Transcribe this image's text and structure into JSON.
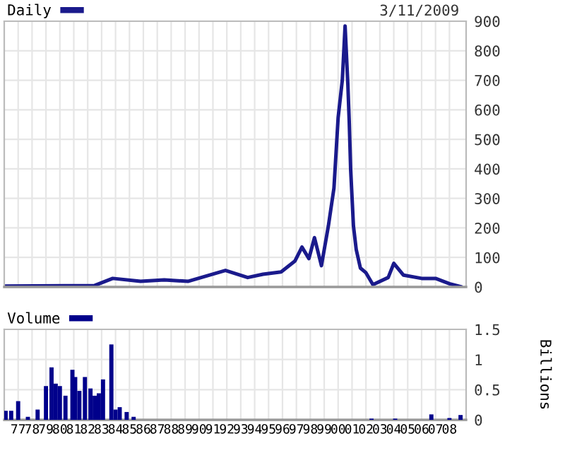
{
  "chart_data": [
    {
      "type": "line",
      "annotations": [
        "3/11/2009"
      ],
      "legend": "top left",
      "grid": true,
      "tick_labels": "y",
      "xlim": [
        1976,
        2009.2
      ],
      "xticks": [
        {
          "value": 1977,
          "label": null
        },
        {
          "value": 1978,
          "label": null
        },
        {
          "value": 1979,
          "label": null
        },
        {
          "value": 1980,
          "label": null
        },
        {
          "value": 1981,
          "label": null
        },
        {
          "value": 1982,
          "label": null
        },
        {
          "value": 1983,
          "label": null
        },
        {
          "value": 1984,
          "label": null
        },
        {
          "value": 1985,
          "label": null
        },
        {
          "value": 1986,
          "label": null
        },
        {
          "value": 1987,
          "label": null
        },
        {
          "value": 1988,
          "label": null
        },
        {
          "value": 1989,
          "label": null
        },
        {
          "value": 1990,
          "label": null
        },
        {
          "value": 1991,
          "label": null
        },
        {
          "value": 1992,
          "label": null
        },
        {
          "value": 1993,
          "label": null
        },
        {
          "value": 1994,
          "label": null
        },
        {
          "value": 1995,
          "label": null
        },
        {
          "value": 1996,
          "label": null
        },
        {
          "value": 1997,
          "label": null
        },
        {
          "value": 1998,
          "label": null
        },
        {
          "value": 1999,
          "label": null
        },
        {
          "value": 2000,
          "label": null
        },
        {
          "value": 2001,
          "label": null
        },
        {
          "value": 2002,
          "label": null
        },
        {
          "value": 2003,
          "label": null
        },
        {
          "value": 2004,
          "label": null
        },
        {
          "value": 2005,
          "label": null
        },
        {
          "value": 2006,
          "label": null
        },
        {
          "value": 2007,
          "label": null
        },
        {
          "value": 2008,
          "label": null
        }
      ],
      "ylim": [
        0,
        900
      ],
      "yticks": [
        0,
        100,
        200,
        300,
        400,
        500,
        600,
        700,
        800,
        900
      ],
      "series": [
        {
          "name": "Daily",
          "color": "#1a1a8c",
          "x": [
            1976.1,
            1982.5,
            1983.8,
            1985.8,
            1987.5,
            1989.2,
            1991.9,
            1993.5,
            1994.6,
            1995.9,
            1996.9,
            1997.4,
            1997.9,
            1998.3,
            1998.8,
            1999.3,
            1999.7,
            2000.0,
            2000.3,
            2000.5,
            2000.7,
            2000.8,
            2000.9,
            2001.0,
            2001.1,
            2001.3,
            2001.6,
            2002.0,
            2002.5,
            2003.6,
            2004.0,
            2004.7,
            2006.0,
            2007.0,
            2008.0,
            2008.8
          ],
          "values": [
            3,
            5,
            29,
            19,
            24,
            19,
            56,
            32,
            43,
            51,
            88,
            135,
            96,
            167,
            72,
            207,
            335,
            573,
            700,
            884,
            685,
            557,
            398,
            303,
            207,
            127,
            64,
            48,
            8,
            32,
            80,
            40,
            29,
            29,
            11,
            1
          ]
        }
      ]
    },
    {
      "type": "bar",
      "legend": "top left",
      "grid": true,
      "y2label": "Billions",
      "xlim": [
        1976,
        2009.2
      ],
      "xticks": [
        {
          "value": 1977,
          "label": "77"
        },
        {
          "value": 1978,
          "label": "78"
        },
        {
          "value": 1979,
          "label": "79"
        },
        {
          "value": 1980,
          "label": "80"
        },
        {
          "value": 1981,
          "label": "81"
        },
        {
          "value": 1982,
          "label": "82"
        },
        {
          "value": 1983,
          "label": "83"
        },
        {
          "value": 1984,
          "label": "84"
        },
        {
          "value": 1985,
          "label": "85"
        },
        {
          "value": 1986,
          "label": "86"
        },
        {
          "value": 1987,
          "label": "87"
        },
        {
          "value": 1988,
          "label": "88"
        },
        {
          "value": 1989,
          "label": "89"
        },
        {
          "value": 1990,
          "label": "90"
        },
        {
          "value": 1991,
          "label": "91"
        },
        {
          "value": 1992,
          "label": "92"
        },
        {
          "value": 1993,
          "label": "93"
        },
        {
          "value": 1994,
          "label": "94"
        },
        {
          "value": 1995,
          "label": "95"
        },
        {
          "value": 1996,
          "label": "96"
        },
        {
          "value": 1997,
          "label": "97"
        },
        {
          "value": 1998,
          "label": "98"
        },
        {
          "value": 1999,
          "label": "99"
        },
        {
          "value": 2000,
          "label": "00"
        },
        {
          "value": 2001,
          "label": "01"
        },
        {
          "value": 2002,
          "label": "02"
        },
        {
          "value": 2003,
          "label": "03"
        },
        {
          "value": 2004,
          "label": "04"
        },
        {
          "value": 2005,
          "label": "05"
        },
        {
          "value": 2006,
          "label": "06"
        },
        {
          "value": 2007,
          "label": "07"
        },
        {
          "value": 2008,
          "label": "08"
        }
      ],
      "ylim": [
        0,
        1.5
      ],
      "yticks": [
        0,
        0.5,
        1,
        1.5
      ],
      "series": [
        {
          "name": "Volume",
          "color": "#00008b",
          "x": [
            1976.1,
            1976.5,
            1977.0,
            1977.7,
            1978.4,
            1979.0,
            1979.4,
            1979.7,
            1980.0,
            1980.4,
            1980.9,
            1981.1,
            1981.4,
            1981.8,
            1982.2,
            1982.5,
            1982.8,
            1983.1,
            1983.7,
            1984.0,
            1984.3,
            1984.8,
            1985.3,
            2002.4,
            2004.1,
            2006.7,
            2008.0,
            2008.8
          ],
          "values": [
            0.15,
            0.15,
            0.31,
            0.05,
            0.17,
            0.56,
            0.87,
            0.6,
            0.56,
            0.4,
            0.83,
            0.71,
            0.48,
            0.71,
            0.52,
            0.4,
            0.44,
            0.67,
            1.25,
            0.17,
            0.21,
            0.13,
            0.05,
            0.02,
            0.02,
            0.09,
            0.03,
            0.08
          ]
        }
      ]
    }
  ]
}
